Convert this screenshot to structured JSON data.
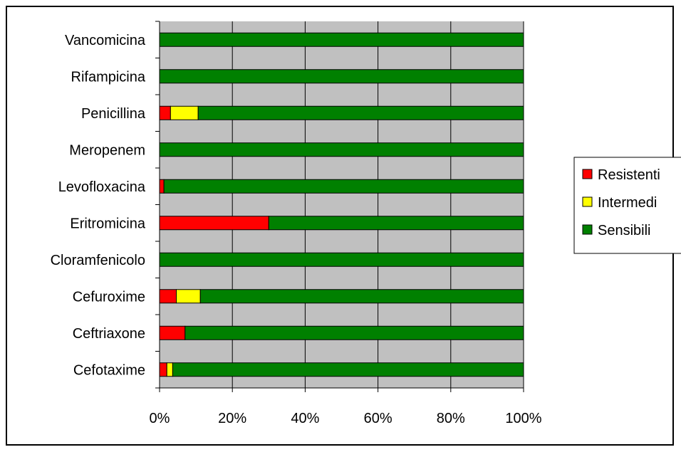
{
  "chart_data": {
    "type": "bar",
    "orientation": "horizontal",
    "stacking": "percent",
    "categories": [
      "Vancomicina",
      "Rifampicina",
      "Penicillina",
      "Meropenem",
      "Levofloxacina",
      "Eritromicina",
      "Cloramfenicolo",
      "Cefuroxime",
      "Ceftriaxone",
      "Cefotaxime"
    ],
    "series": [
      {
        "name": "Resistenti",
        "color": "#ff0000",
        "values": [
          0,
          0,
          3,
          0,
          1.2,
          30,
          0,
          4.6,
          7,
          2
        ]
      },
      {
        "name": "Intermedi",
        "color": "#ffff00",
        "values": [
          0,
          0,
          7.6,
          0,
          0,
          0,
          0,
          6.6,
          0,
          1.6
        ]
      },
      {
        "name": "Sensibili",
        "color": "#008000",
        "values": [
          100,
          100,
          89.4,
          100,
          98.8,
          70,
          100,
          88.8,
          93,
          96.4
        ]
      }
    ],
    "x_ticks": [
      "0%",
      "20%",
      "40%",
      "60%",
      "80%",
      "100%"
    ],
    "xlim": [
      0,
      100
    ],
    "grid": true,
    "plot_background": "#c0c0c0",
    "legend_position": "right"
  }
}
